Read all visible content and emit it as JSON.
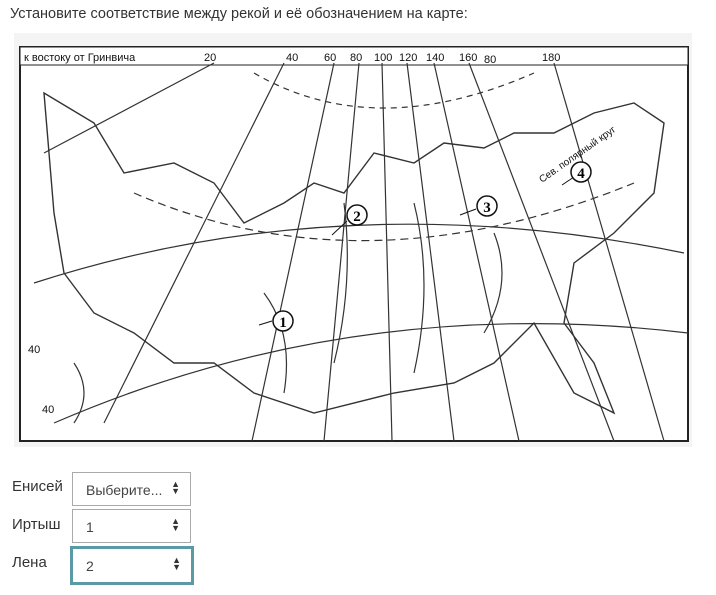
{
  "question": "Установите соответствие между рекой и её обозначением на карте:",
  "map": {
    "caption": "к востоку от Гринвича",
    "longitudes": [
      "20",
      "40",
      "60",
      "80",
      "100",
      "120",
      "140",
      "160",
      "180"
    ],
    "parallel_label": "80",
    "arctic_circle": "Сев. полярный круг",
    "side_labels": [
      "40",
      "40"
    ],
    "markers": [
      "1",
      "2",
      "3",
      "4"
    ]
  },
  "rows": [
    {
      "label": "Енисей",
      "value": "Выберите..."
    },
    {
      "label": "Иртыш",
      "value": "1"
    },
    {
      "label": "Лена",
      "value": "2"
    }
  ],
  "focus_color": "#5a9aa6"
}
